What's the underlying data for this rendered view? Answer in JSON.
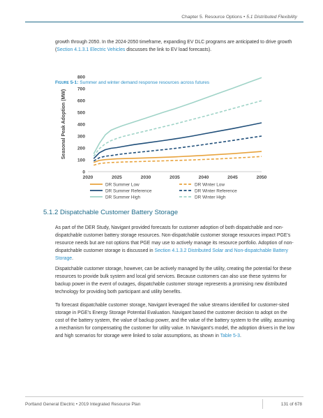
{
  "header": {
    "chapter": "Chapter 5. Resource Options",
    "bullet": "•",
    "section": "5.1 Distributed Flexibility"
  },
  "intro": {
    "text_a": "growth through 2050. In the 2024-2050 timeframe, expanding EV DLC programs are anticipated to drive growth (",
    "link": "Section 4.1.3.1 Electric Vehicles",
    "text_b": " discusses the link to EV load forecasts)."
  },
  "figure": {
    "label": "Figure 5-1:",
    "title": " Summer and winter demand response resources across futures"
  },
  "chart_data": {
    "type": "line",
    "title": "",
    "xlabel": "",
    "ylabel": "Seasonal Peak Adoption (MW)",
    "xlim": [
      2020,
      2050
    ],
    "ylim": [
      0,
      800
    ],
    "xticks": [
      2020,
      2025,
      2030,
      2035,
      2040,
      2045,
      2050
    ],
    "yticks": [
      0,
      100,
      200,
      300,
      400,
      500,
      600,
      700,
      800
    ],
    "x": [
      2021,
      2022,
      2023,
      2024,
      2025,
      2026,
      2028,
      2030,
      2033,
      2035,
      2038,
      2040,
      2043,
      2045,
      2048,
      2050
    ],
    "series": [
      {
        "name": "DR Summer Low",
        "color": "#e8a33d",
        "dash": false,
        "values": [
          78,
          95,
          102,
          105,
          108,
          110,
          113,
          116,
          121,
          125,
          132,
          137,
          146,
          152,
          163,
          170
        ]
      },
      {
        "name": "DR Winter Low",
        "color": "#e8a33d",
        "dash": true,
        "values": [
          55,
          68,
          74,
          77,
          79,
          81,
          84,
          87,
          91,
          94,
          99,
          103,
          109,
          114,
          122,
          128
        ]
      },
      {
        "name": "DR Summer Reference",
        "color": "#1f4e79",
        "dash": false,
        "values": [
          110,
          160,
          185,
          197,
          203,
          212,
          228,
          242,
          262,
          276,
          300,
          318,
          345,
          363,
          392,
          412
        ]
      },
      {
        "name": "DR Winter Reference",
        "color": "#1f4e79",
        "dash": true,
        "values": [
          90,
          118,
          130,
          136,
          143,
          150,
          160,
          170,
          185,
          196,
          215,
          228,
          249,
          263,
          285,
          300
        ]
      },
      {
        "name": "DR Summer High",
        "color": "#9fd3c7",
        "dash": false,
        "values": [
          150,
          240,
          310,
          350,
          370,
          388,
          420,
          452,
          500,
          530,
          580,
          615,
          668,
          703,
          757,
          793
        ]
      },
      {
        "name": "DR Winter High",
        "color": "#9fd3c7",
        "dash": true,
        "values": [
          130,
          195,
          235,
          262,
          280,
          296,
          320,
          343,
          378,
          402,
          440,
          465,
          505,
          532,
          572,
          598
        ]
      }
    ],
    "legend_placement": "bottom",
    "grid": false
  },
  "section_heading": "5.1.2 Dispatchable Customer Battery Storage",
  "p1": {
    "text_a": "As part of the DER Study, Navigant provided forecasts for customer adoption of both dispatchable and non-dispatchable customer battery storage resources. Non-dispatchable customer storage resources impact PGE’s resource needs but are not options that PGE may use to actively manage its resource portfolio. Adoption of non-dispatchable customer storage is discussed in ",
    "link": "Section 4.1.3.2 Distributed Solar and Non-dispatchable Battery Storage",
    "text_b": "."
  },
  "p2": {
    "text": "Dispatchable customer storage, however, can be actively managed by the utility, creating the potential for these resources to provide bulk system and local grid services. Because customers can also use these systems for backup power in the event of outages, dispatchable customer storage represents a promising new distributed technology for providing both participant and utility benefits."
  },
  "p3": {
    "text_a": "To forecast dispatchable customer storage, Navigant leveraged the value streams identified for customer-sited storage in PGE’s Energy Storage Potential Evaluation. Navigant based the customer decision to adopt on the cost of the battery system, the value of backup power, and the value of the battery system to the utility, assuming a mechanism for compensating the customer for utility value. In Navigant’s model, the adoption drivers in the low and high scenarios for storage were linked to solar assumptions, as shown in ",
    "link": "Table 5-3",
    "text_b": "."
  },
  "footer": {
    "left": "Portland General Electric  •  2019 Integrated Resource Plan",
    "right": "131 of 678"
  },
  "colors": {
    "heading": "#1f6b8a",
    "link": "#2a8fc6",
    "rule": "#1f6b8a"
  }
}
